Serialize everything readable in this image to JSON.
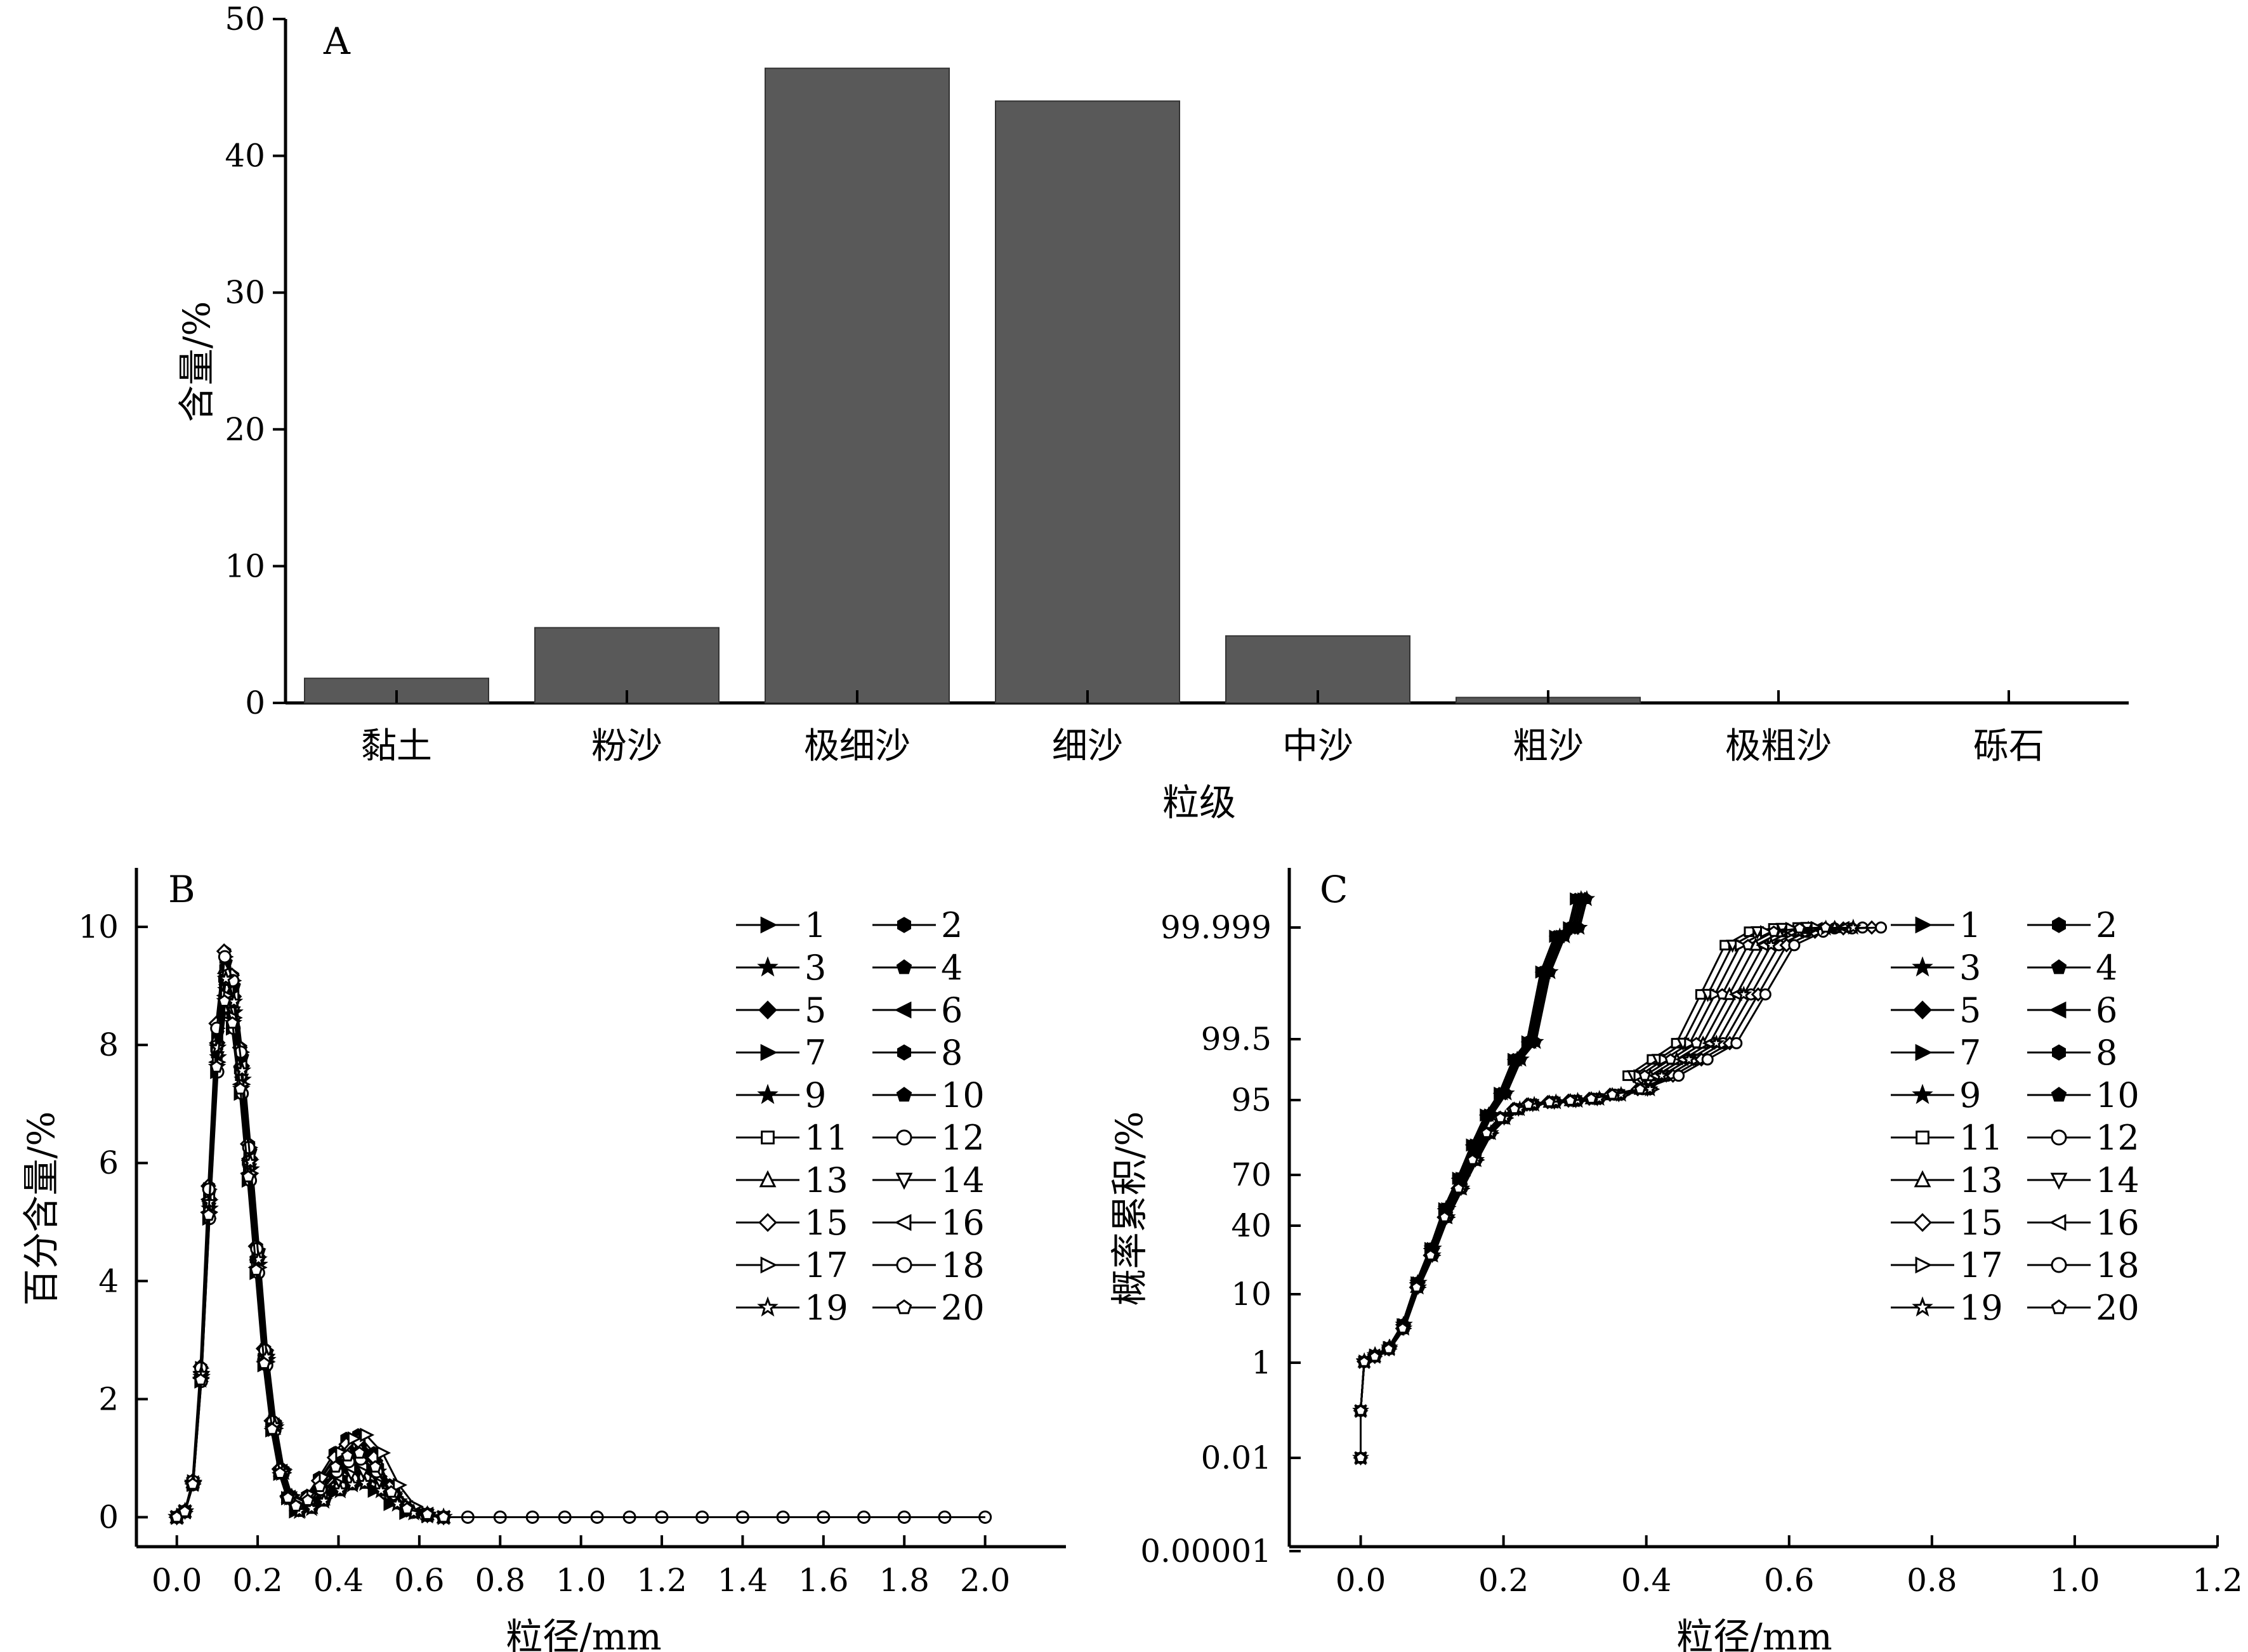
{
  "chart_data": [
    {
      "panel_label": "A",
      "type": "bar",
      "categories": [
        "黏土",
        "粉沙",
        "极细沙",
        "细沙",
        "中沙",
        "粗沙",
        "极粗沙",
        "砾石"
      ],
      "values": [
        1.8,
        5.5,
        46.4,
        44.0,
        4.9,
        0.4,
        0.0,
        0.0
      ],
      "xlabel": "粒级",
      "ylabel": "含量/%",
      "ylim": [
        0,
        50
      ],
      "yticks": [
        "0",
        "10",
        "20",
        "30",
        "40",
        "50"
      ],
      "bar_color": "#595959"
    },
    {
      "panel_label": "B",
      "type": "line",
      "xlabel": "粒径/mm",
      "ylabel": "百分含量/%",
      "xlim": [
        -0.1,
        2.2
      ],
      "ylim": [
        -0.5,
        11
      ],
      "xticks": [
        "0.0",
        "0.2",
        "0.4",
        "0.6",
        "0.8",
        "1.0",
        "1.2",
        "1.4",
        "1.6",
        "1.8",
        "2.0"
      ],
      "yticks": [
        "0",
        "2",
        "4",
        "6",
        "8",
        "10"
      ],
      "legend_placement": "top-right",
      "series": [
        {
          "name": "1",
          "marker": "tri-right",
          "filled": true
        },
        {
          "name": "2",
          "marker": "hexagon",
          "filled": true
        },
        {
          "name": "3",
          "marker": "star",
          "filled": true
        },
        {
          "name": "4",
          "marker": "pentagon",
          "filled": true
        },
        {
          "name": "5",
          "marker": "diamond",
          "filled": true
        },
        {
          "name": "6",
          "marker": "tri-left",
          "filled": true
        },
        {
          "name": "7",
          "marker": "tri-right",
          "filled": true
        },
        {
          "name": "8",
          "marker": "hexagon",
          "filled": true
        },
        {
          "name": "9",
          "marker": "star",
          "filled": true
        },
        {
          "name": "10",
          "marker": "pentagon",
          "filled": true
        },
        {
          "name": "11",
          "marker": "square",
          "filled": false
        },
        {
          "name": "12",
          "marker": "circle",
          "filled": false
        },
        {
          "name": "13",
          "marker": "tri-up",
          "filled": false
        },
        {
          "name": "14",
          "marker": "tri-down",
          "filled": false
        },
        {
          "name": "15",
          "marker": "diamond",
          "filled": false
        },
        {
          "name": "16",
          "marker": "tri-left",
          "filled": false
        },
        {
          "name": "17",
          "marker": "tri-right",
          "filled": false
        },
        {
          "name": "18",
          "marker": "circle",
          "filled": false
        },
        {
          "name": "19",
          "marker": "star",
          "filled": false
        },
        {
          "name": "20",
          "marker": "pentagon",
          "filled": false
        }
      ],
      "curve_profile": {
        "x": [
          0.0,
          0.02,
          0.04,
          0.06,
          0.08,
          0.1,
          0.12,
          0.14,
          0.16,
          0.18,
          0.2,
          0.22,
          0.24,
          0.26,
          0.28,
          0.3,
          0.33,
          0.36,
          0.4,
          0.43,
          0.46,
          0.5,
          0.54,
          0.58,
          0.62,
          0.66,
          0.72,
          0.8,
          0.88,
          0.96,
          1.04,
          1.12,
          1.2,
          1.3,
          1.4,
          1.5,
          1.6,
          1.7,
          1.8,
          1.9,
          2.0
        ],
        "y": [
          0.0,
          0.1,
          0.6,
          2.5,
          5.5,
          8.2,
          9.4,
          9.0,
          7.8,
          6.2,
          4.5,
          2.8,
          1.6,
          0.8,
          0.35,
          0.2,
          0.3,
          0.55,
          0.9,
          1.1,
          1.15,
          0.9,
          0.45,
          0.15,
          0.05,
          0.0,
          0.0,
          0.0,
          0.0,
          0.0,
          0.0,
          0.0,
          0.0,
          0.0,
          0.0,
          0.0,
          0.0,
          0.0,
          0.0,
          0.0,
          0.0
        ]
      }
    },
    {
      "panel_label": "C",
      "type": "line",
      "xlabel": "粒径/mm",
      "ylabel": "概率累积/%",
      "xlim": [
        -0.1,
        1.2
      ],
      "xticks": [
        "0.0",
        "0.2",
        "0.4",
        "0.6",
        "0.8",
        "1.0",
        "1.2"
      ],
      "yticks": [
        "0.00001",
        "0.01",
        "1",
        "10",
        "40",
        "70",
        "95",
        "99.5",
        "99.999"
      ],
      "yscale": "probability",
      "legend_placement": "top-right",
      "series": [
        {
          "name": "1",
          "marker": "tri-right",
          "filled": true
        },
        {
          "name": "2",
          "marker": "hexagon",
          "filled": true
        },
        {
          "name": "3",
          "marker": "star",
          "filled": true
        },
        {
          "name": "4",
          "marker": "pentagon",
          "filled": true
        },
        {
          "name": "5",
          "marker": "diamond",
          "filled": true
        },
        {
          "name": "6",
          "marker": "tri-left",
          "filled": true
        },
        {
          "name": "7",
          "marker": "tri-right",
          "filled": true
        },
        {
          "name": "8",
          "marker": "hexagon",
          "filled": true
        },
        {
          "name": "9",
          "marker": "star",
          "filled": true
        },
        {
          "name": "10",
          "marker": "pentagon",
          "filled": true
        },
        {
          "name": "11",
          "marker": "square",
          "filled": false
        },
        {
          "name": "12",
          "marker": "circle",
          "filled": false
        },
        {
          "name": "13",
          "marker": "tri-up",
          "filled": false
        },
        {
          "name": "14",
          "marker": "tri-down",
          "filled": false
        },
        {
          "name": "15",
          "marker": "diamond",
          "filled": false
        },
        {
          "name": "16",
          "marker": "tri-left",
          "filled": false
        },
        {
          "name": "17",
          "marker": "tri-right",
          "filled": false
        },
        {
          "name": "18",
          "marker": "circle",
          "filled": false
        },
        {
          "name": "19",
          "marker": "star",
          "filled": false
        },
        {
          "name": "20",
          "marker": "pentagon",
          "filled": false
        }
      ],
      "curve_profile_steep": {
        "x": [
          0.0,
          0.0,
          0.005,
          0.02,
          0.04,
          0.06,
          0.08,
          0.1,
          0.12,
          0.14,
          0.16,
          0.18,
          0.2,
          0.22,
          0.24,
          0.26,
          0.28,
          0.3,
          0.31
        ],
        "y": [
          0.01,
          0.5,
          1.2,
          2.0,
          3.0,
          6.0,
          15.0,
          30.0,
          50.0,
          68.0,
          80.0,
          90.0,
          95.5,
          98.0,
          99.3,
          99.8,
          99.96,
          99.998,
          99.9995
        ]
      },
      "curve_profile_tail": {
        "x": [
          0.0,
          0.0,
          0.005,
          0.02,
          0.04,
          0.06,
          0.08,
          0.1,
          0.12,
          0.14,
          0.16,
          0.18,
          0.2,
          0.22,
          0.24,
          0.27,
          0.3,
          0.33,
          0.36,
          0.4,
          0.44,
          0.48,
          0.52,
          0.56,
          0.6,
          0.64,
          0.68,
          0.72
        ],
        "y": [
          0.01,
          0.5,
          1.1,
          1.8,
          2.8,
          5.5,
          13.0,
          27.0,
          45.0,
          62.0,
          75.0,
          84.0,
          89.0,
          92.0,
          93.5,
          94.3,
          94.8,
          95.1,
          95.4,
          95.8,
          96.8,
          98.0,
          99.2,
          99.7,
          99.92,
          99.98,
          99.995,
          99.999
        ]
      }
    }
  ]
}
